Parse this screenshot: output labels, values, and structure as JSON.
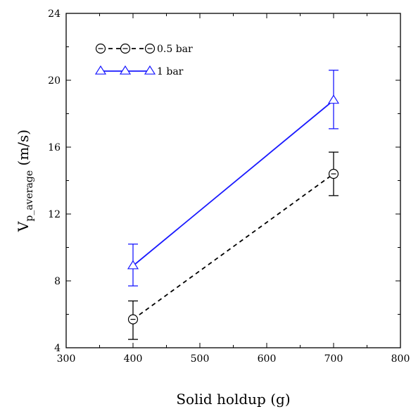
{
  "chart_data": {
    "type": "line",
    "xlabel": "Solid holdup (g)",
    "ylabel_main": "V",
    "ylabel_sub": "p_average",
    "ylabel_unit": " (m/s)",
    "xlim": [
      300,
      800
    ],
    "ylim": [
      4,
      24
    ],
    "xticks": [
      300,
      400,
      500,
      600,
      700,
      800
    ],
    "yticks": [
      4,
      8,
      12,
      16,
      20,
      24
    ],
    "grid": false,
    "legend_position": "top-left",
    "series": [
      {
        "name": "0.5 bar",
        "color": "#000000",
        "line_style": "dashed",
        "marker": "circle-with-dash",
        "points": [
          {
            "x": 400,
            "y": 5.7,
            "err_low": 4.5,
            "err_high": 6.8
          },
          {
            "x": 700,
            "y": 14.4,
            "err_low": 13.1,
            "err_high": 15.7
          }
        ]
      },
      {
        "name": "1 bar",
        "color": "#1a1aff",
        "line_style": "solid",
        "marker": "triangle",
        "points": [
          {
            "x": 400,
            "y": 8.9,
            "err_low": 7.7,
            "err_high": 10.2
          },
          {
            "x": 700,
            "y": 18.8,
            "err_low": 17.1,
            "err_high": 20.6
          }
        ]
      }
    ]
  }
}
